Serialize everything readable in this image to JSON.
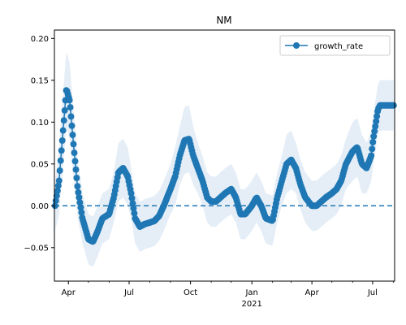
{
  "chart_data": {
    "type": "line",
    "title": "NM",
    "xlabel": "",
    "ylabel": "",
    "ylim": [
      -0.09,
      0.21
    ],
    "y_ticks": [
      "−0.05",
      "0.00",
      "0.05",
      "0.10",
      "0.15",
      "0.20"
    ],
    "x_ticks": [
      "Apr",
      "Jul",
      "Oct",
      "Jan",
      "Apr",
      "Jul"
    ],
    "x_year_label": "2021",
    "legend": {
      "placement": "top-right"
    },
    "reference_line": {
      "y": 0,
      "style": "dashed"
    },
    "colors": {
      "line": "#1f77b4",
      "band": "#dce8f4"
    },
    "series": [
      {
        "name": "growth_rate",
        "dates": [
          "2020-03-12",
          "2020-03-18",
          "2020-03-25",
          "2020-03-29",
          "2020-04-03",
          "2020-04-09",
          "2020-04-15",
          "2020-04-22",
          "2020-05-01",
          "2020-05-08",
          "2020-05-15",
          "2020-05-22",
          "2020-06-01",
          "2020-06-08",
          "2020-06-15",
          "2020-06-22",
          "2020-06-29",
          "2020-07-04",
          "2020-07-10",
          "2020-07-17",
          "2020-07-24",
          "2020-08-01",
          "2020-08-08",
          "2020-08-15",
          "2020-08-22",
          "2020-09-01",
          "2020-09-08",
          "2020-09-15",
          "2020-09-22",
          "2020-09-29",
          "2020-10-05",
          "2020-10-12",
          "2020-10-19",
          "2020-10-26",
          "2020-11-01",
          "2020-11-08",
          "2020-11-15",
          "2020-11-22",
          "2020-12-01",
          "2020-12-08",
          "2020-12-15",
          "2020-12-22",
          "2021-01-01",
          "2021-01-08",
          "2021-01-15",
          "2021-01-22",
          "2021-02-01",
          "2021-02-08",
          "2021-02-15",
          "2021-02-22",
          "2021-03-01",
          "2021-03-08",
          "2021-03-15",
          "2021-03-22",
          "2021-04-01",
          "2021-04-08",
          "2021-04-15",
          "2021-04-22",
          "2021-05-01",
          "2021-05-08",
          "2021-05-15",
          "2021-05-22",
          "2021-06-01",
          "2021-06-08",
          "2021-06-15",
          "2021-06-22",
          "2021-06-29",
          "2021-07-02",
          "2021-07-06",
          "2021-07-09",
          "2021-07-12",
          "2021-07-16",
          "2021-07-20",
          "2021-07-24",
          "2021-07-28",
          "2021-08-02"
        ],
        "values": [
          0.0,
          0.03,
          0.1,
          0.14,
          0.125,
          0.07,
          0.02,
          -0.015,
          -0.04,
          -0.043,
          -0.03,
          -0.015,
          -0.01,
          0.01,
          0.04,
          0.045,
          0.035,
          0.015,
          -0.015,
          -0.025,
          -0.022,
          -0.02,
          -0.018,
          -0.012,
          0.0,
          0.02,
          0.035,
          0.06,
          0.078,
          0.08,
          0.06,
          0.045,
          0.03,
          0.01,
          0.005,
          0.005,
          0.01,
          0.015,
          0.02,
          0.01,
          -0.01,
          -0.01,
          0.0,
          0.01,
          0.0,
          -0.015,
          -0.018,
          0.01,
          0.03,
          0.05,
          0.055,
          0.045,
          0.025,
          0.01,
          0.0,
          0.0,
          0.005,
          0.01,
          0.015,
          0.02,
          0.03,
          0.05,
          0.065,
          0.07,
          0.05,
          0.045,
          0.06,
          0.08,
          0.1,
          0.115,
          0.12,
          0.12,
          0.12,
          0.12,
          0.12,
          0.12
        ],
        "band_spread": [
          0.03,
          0.04,
          0.045,
          0.045,
          0.045,
          0.04,
          0.035,
          0.03,
          0.03,
          0.03,
          0.03,
          0.03,
          0.03,
          0.03,
          0.035,
          0.035,
          0.035,
          0.03,
          0.03,
          0.03,
          0.03,
          0.03,
          0.03,
          0.03,
          0.03,
          0.03,
          0.035,
          0.035,
          0.04,
          0.04,
          0.035,
          0.03,
          0.03,
          0.03,
          0.03,
          0.03,
          0.03,
          0.03,
          0.03,
          0.03,
          0.03,
          0.03,
          0.03,
          0.03,
          0.03,
          0.03,
          0.03,
          0.03,
          0.03,
          0.035,
          0.035,
          0.03,
          0.03,
          0.03,
          0.03,
          0.03,
          0.03,
          0.03,
          0.03,
          0.03,
          0.03,
          0.03,
          0.035,
          0.035,
          0.035,
          0.03,
          0.03,
          0.03,
          0.03,
          0.03,
          0.03,
          0.03,
          0.03,
          0.03,
          0.03,
          0.03
        ]
      }
    ]
  }
}
